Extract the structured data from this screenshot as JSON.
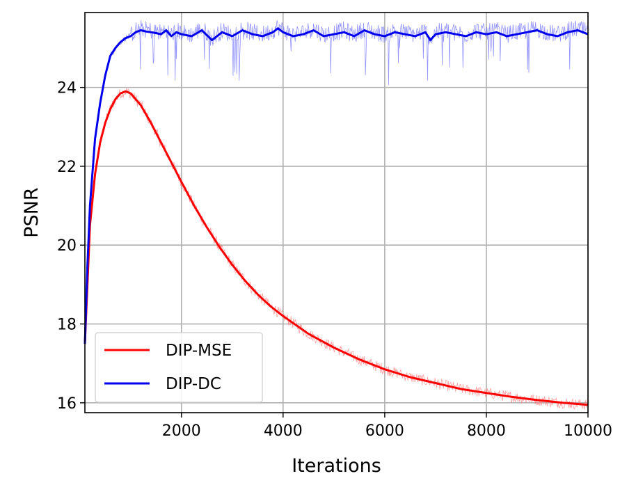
{
  "chart_data": {
    "type": "line",
    "title": "",
    "xlabel": "Iterations",
    "ylabel": "PSNR",
    "xlim": [
      100,
      10000
    ],
    "ylim": [
      15.75,
      25.9
    ],
    "xticks": [
      2000,
      4000,
      6000,
      8000,
      10000
    ],
    "yticks": [
      16,
      18,
      20,
      22,
      24
    ],
    "grid": true,
    "legend_position": "lower-left",
    "series": [
      {
        "name": "DIP-MSE",
        "color": "#ff0000",
        "raw_color": "#ff8080",
        "x": [
          100,
          200,
          300,
          400,
          500,
          600,
          700,
          800,
          900,
          1000,
          1200,
          1400,
          1600,
          1800,
          2000,
          2250,
          2500,
          2750,
          3000,
          3250,
          3500,
          3750,
          4000,
          4500,
          5000,
          5500,
          6000,
          6500,
          7000,
          7500,
          8000,
          8500,
          9000,
          9500,
          10000
        ],
        "values": [
          17.5,
          20.5,
          21.8,
          22.6,
          23.1,
          23.45,
          23.7,
          23.85,
          23.9,
          23.85,
          23.55,
          23.1,
          22.6,
          22.1,
          21.6,
          21.0,
          20.45,
          19.95,
          19.5,
          19.1,
          18.75,
          18.45,
          18.2,
          17.75,
          17.4,
          17.1,
          16.85,
          16.65,
          16.5,
          16.35,
          16.25,
          16.15,
          16.07,
          16.0,
          15.95
        ]
      },
      {
        "name": "DIP-DC",
        "color": "#0000ee",
        "raw_color": "#7070ff",
        "x": [
          100,
          150,
          200,
          300,
          400,
          500,
          600,
          700,
          800,
          900,
          1000,
          1100,
          1200,
          1300,
          1400,
          1500,
          1600,
          1700,
          1800,
          1900,
          2000,
          2200,
          2400,
          2600,
          2800,
          3000,
          3200,
          3400,
          3600,
          3800,
          3900,
          4000,
          4200,
          4400,
          4600,
          4800,
          5000,
          5200,
          5400,
          5600,
          5800,
          6000,
          6200,
          6400,
          6600,
          6800,
          6900,
          7000,
          7200,
          7400,
          7600,
          7800,
          8000,
          8200,
          8400,
          8600,
          8800,
          9000,
          9200,
          9400,
          9600,
          9800,
          10000
        ],
        "values": [
          17.5,
          19.5,
          21.0,
          22.7,
          23.6,
          24.3,
          24.8,
          25.0,
          25.15,
          25.25,
          25.3,
          25.4,
          25.45,
          25.42,
          25.4,
          25.38,
          25.35,
          25.45,
          25.3,
          25.4,
          25.35,
          25.3,
          25.45,
          25.2,
          25.4,
          25.3,
          25.45,
          25.35,
          25.3,
          25.4,
          25.5,
          25.4,
          25.3,
          25.35,
          25.45,
          25.3,
          25.35,
          25.4,
          25.3,
          25.45,
          25.35,
          25.3,
          25.4,
          25.35,
          25.3,
          25.4,
          25.2,
          25.35,
          25.4,
          25.35,
          25.3,
          25.4,
          25.35,
          25.4,
          25.3,
          25.35,
          25.4,
          25.45,
          25.35,
          25.3,
          25.4,
          25.45,
          25.35
        ]
      }
    ]
  }
}
